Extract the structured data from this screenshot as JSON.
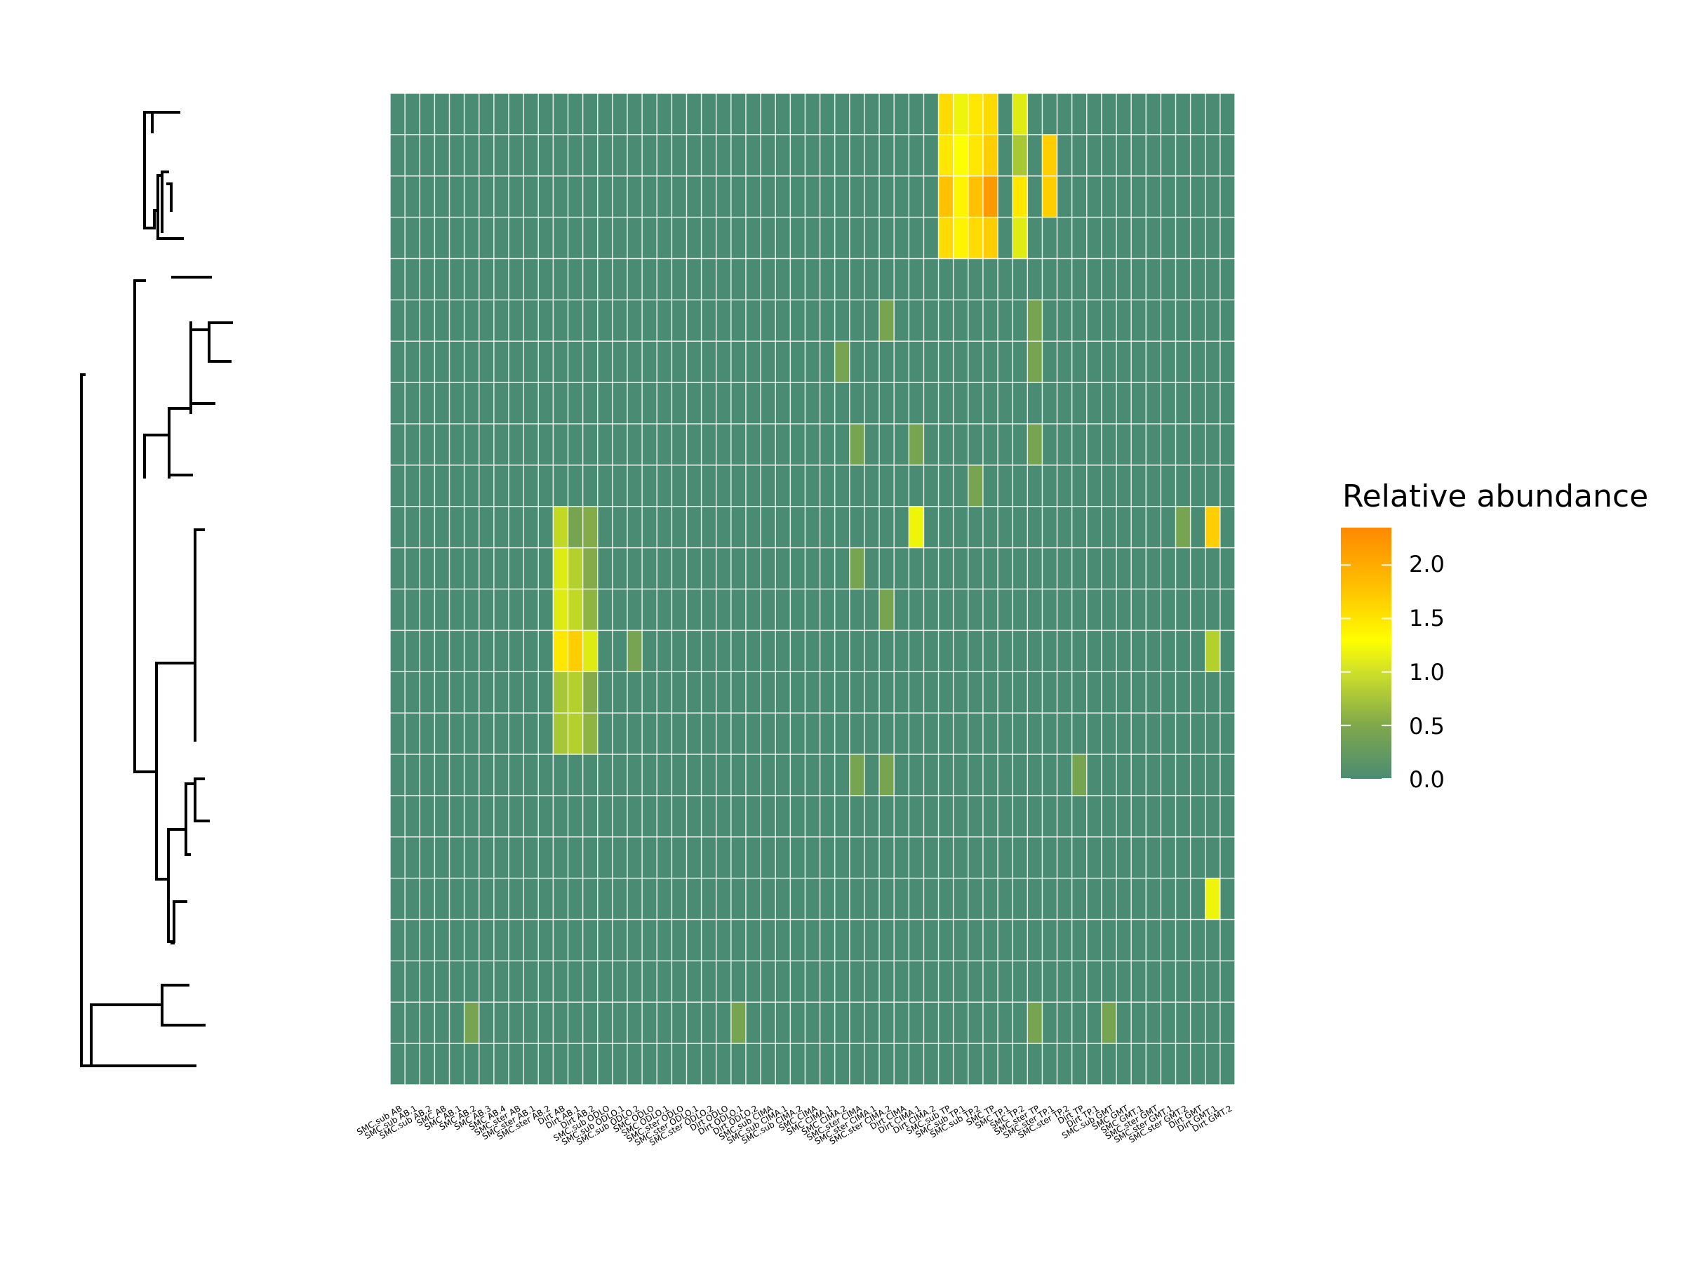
{
  "chart_data": {
    "type": "heatmap",
    "title": "",
    "xlabel": "",
    "ylabel": "",
    "x_categories": [
      "SMC.sub AB",
      "SMC.sub AB.1",
      "SMC.sub AB.2",
      "SMC AB",
      "SMC AB.1",
      "SMC AB.2",
      "SMC AB.3",
      "SMC AB.4",
      "SMC.ster AB",
      "SMC.ster AB.1",
      "SMC.ster AB.2",
      "Dirt AB",
      "Dirt AB.1",
      "Dirt AB.2",
      "SMC.sub ODLO",
      "SMC.sub ODLO.1",
      "SMC.sub ODLO.2",
      "SMC ODLO",
      "SMC ODLO.1",
      "SMC.ster ODLO",
      "SMC.ster ODLO.1",
      "SMC.ster ODLO.2",
      "Dirt ODLO",
      "Dirt ODLO.1",
      "Dirt ODLO.2",
      "SMC.sub CIMA",
      "SMC.sub CIMA.1",
      "SMC.sub CIMA.2",
      "SMC CIMA",
      "SMC CIMA.1",
      "SMC CIMA.2",
      "SMC.ster CIMA",
      "SMC.ster CIMA.1",
      "SMC.ster CIMA.2",
      "Dirt CIMA",
      "Dirt CIMA.1",
      "Dirt CIMA.2",
      "SMC.sub TP",
      "SMC.sub TP.1",
      "SMC.sub TP.2",
      "SMC TP",
      "SMC TP.1",
      "SMC TP.2",
      "SMC.ster TP",
      "SMC.ster TP.1",
      "SMC.ster TP.2",
      "Dirt TP",
      "Dirt TP.1",
      "SMC.sub GMT",
      "SMC GMT",
      "SMC GMT.1",
      "SMC.ster GMT",
      "SMC.ster GMT.1",
      "SMC.ster GMT.2",
      "Dirt GMT",
      "Dirt GMT.1",
      "Dirt GMT.2"
    ],
    "n_rows": 24,
    "cells": [
      [
        0,
        37,
        1.7
      ],
      [
        0,
        38,
        1.3
      ],
      [
        0,
        39,
        1.6
      ],
      [
        0,
        40,
        1.7
      ],
      [
        0,
        42,
        1.2
      ],
      [
        1,
        37,
        1.6
      ],
      [
        1,
        38,
        1.4
      ],
      [
        1,
        39,
        1.6
      ],
      [
        1,
        40,
        1.8
      ],
      [
        1,
        42,
        0.8
      ],
      [
        1,
        44,
        1.8
      ],
      [
        2,
        37,
        1.9
      ],
      [
        2,
        38,
        1.5
      ],
      [
        2,
        39,
        1.9
      ],
      [
        2,
        40,
        2.2
      ],
      [
        2,
        42,
        1.6
      ],
      [
        2,
        44,
        1.8
      ],
      [
        3,
        37,
        1.7
      ],
      [
        3,
        38,
        1.5
      ],
      [
        3,
        39,
        1.7
      ],
      [
        3,
        40,
        1.8
      ],
      [
        3,
        42,
        1.2
      ],
      [
        5,
        33,
        0.4
      ],
      [
        5,
        43,
        0.4
      ],
      [
        6,
        30,
        0.4
      ],
      [
        6,
        43,
        0.4
      ],
      [
        8,
        31,
        0.4
      ],
      [
        8,
        35,
        0.4
      ],
      [
        8,
        43,
        0.4
      ],
      [
        9,
        39,
        0.4
      ],
      [
        10,
        11,
        1.0
      ],
      [
        10,
        12,
        0.4
      ],
      [
        10,
        13,
        0.5
      ],
      [
        10,
        35,
        1.3
      ],
      [
        10,
        53,
        0.4
      ],
      [
        10,
        55,
        1.8
      ],
      [
        11,
        11,
        1.2
      ],
      [
        11,
        12,
        0.9
      ],
      [
        11,
        13,
        0.5
      ],
      [
        11,
        31,
        0.4
      ],
      [
        12,
        11,
        1.2
      ],
      [
        12,
        12,
        1.0
      ],
      [
        12,
        13,
        0.6
      ],
      [
        12,
        33,
        0.4
      ],
      [
        13,
        11,
        1.6
      ],
      [
        13,
        12,
        1.8
      ],
      [
        13,
        13,
        1.2
      ],
      [
        13,
        16,
        0.4
      ],
      [
        13,
        55,
        0.9
      ],
      [
        14,
        11,
        0.8
      ],
      [
        14,
        12,
        0.9
      ],
      [
        14,
        13,
        0.5
      ],
      [
        15,
        11,
        0.8
      ],
      [
        15,
        12,
        0.9
      ],
      [
        15,
        13,
        0.6
      ],
      [
        16,
        31,
        0.4
      ],
      [
        16,
        33,
        0.4
      ],
      [
        16,
        46,
        0.4
      ],
      [
        19,
        55,
        1.3
      ],
      [
        22,
        5,
        0.4
      ],
      [
        22,
        23,
        0.4
      ],
      [
        22,
        43,
        0.4
      ],
      [
        22,
        48,
        0.4
      ]
    ],
    "colorbar": {
      "title": "Relative abundance",
      "min": 0.0,
      "max": 2.35,
      "ticks": [
        "0.0",
        "0.5",
        "1.0",
        "1.5",
        "2.0"
      ],
      "colors": [
        "#4a8c73",
        "#7fa84b",
        "#b8d42a",
        "#ffff00",
        "#ffc400",
        "#ff8800"
      ]
    },
    "dendrogram": "left-side row clustering tree",
    "grid": true,
    "legend_position": "right"
  }
}
